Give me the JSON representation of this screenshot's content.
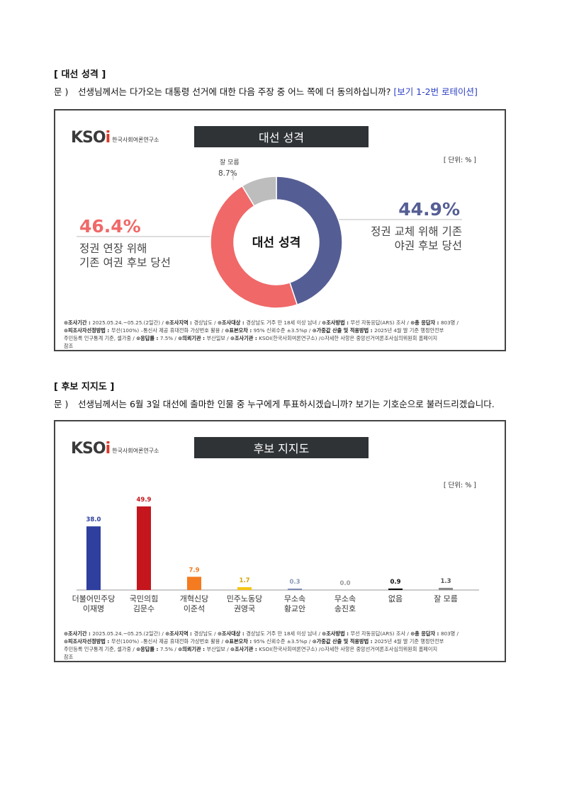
{
  "section1": {
    "title": "[ 대선 성격 ]",
    "q_label": "문 )",
    "q_text": "선생님께서는 다가오는 대통령 선거에 대한 다음 주장 중 어느 쪽에 더 동의하십니까? ",
    "q_note": "[보기 1-2번 로테이션]"
  },
  "section2": {
    "title": "[ 후보 지지도 ]",
    "q_label": "문 )",
    "q_text": "선생님께서는 6월 3일 대선에 출마한 인물 중 누구에게 투표하시겠습니까? 보기는 기호순으로 불러드리겠습니다."
  },
  "logo": {
    "mark_a": "KSO",
    "mark_b": "i",
    "sub": "한국사회여론연구소"
  },
  "panel1": {
    "title": "대선 성격",
    "unit": "[ 단위: % ]",
    "center_label": "대선 성격",
    "left_pct": "46.4%",
    "left_line1": "정권 연장 위해",
    "left_line2": "기존 여권 후보 당선",
    "right_pct": "44.9%",
    "right_line1": "정권 교체 위해 기존",
    "right_line2": "야권 후보 당선",
    "top_label1": "잘 모름",
    "top_label2": "8.7%"
  },
  "panel2": {
    "title": "후보 지지도",
    "unit": "[ 단위: % ]"
  },
  "footer": {
    "l1a": "⊙조사기간 : ",
    "l1b": "2025.05.24.~05.25.(2일간)  / ",
    "l1c": "⊙조사지역 : ",
    "l1d": "경상남도 / ",
    "l1e": "⊙조사대상 : ",
    "l1f": "경상남도 거주 만 18세 이상 남녀 / ",
    "l1g": "⊙조사방법 : ",
    "l1h": "무선 자동응답(ARS) 조사 / ",
    "l1i": "⊙총 응답자 : ",
    "l1j": "803명 /",
    "l2a": "⊙피조사자선정방법 : ",
    "l2b": "무선(100%) –통신사 제공 휴대전화 가상번호 활용 / ",
    "l2c": "⊙표본오차 : ",
    "l2d": "95% 신뢰수준 ±3.5%p / ",
    "l2e": "⊙가중값 산출 및 적용방법 : ",
    "l2f": "2025년 4월 말 기준 행정안전부",
    "l3a": "주민등록 인구통계 기준, 셀가중 / ",
    "l3b": "⊙응답률 : ",
    "l3c": "7.5% / ",
    "l3d": "⊙의뢰기관 : ",
    "l3e": "부산일보 / ",
    "l3f": "⊙조사기관 : ",
    "l3g": "KSOI(한국사회여론연구소) /",
    "l3h": "⊙자세한 사항은 중앙선거여론조사심의위원회 홈페이지",
    "l4": "참조"
  },
  "chart_data": [
    {
      "type": "pie",
      "title": "대선 성격",
      "categories": [
        "정권 교체 위해 기존 야권 후보 당선",
        "정권 연장 위해 기존 여권 후보 당선",
        "잘 모름"
      ],
      "values": [
        44.9,
        46.4,
        8.7
      ],
      "colors": [
        "#555e94",
        "#f06868",
        "#bdbdbd"
      ]
    },
    {
      "type": "bar",
      "title": "후보 지지도",
      "categories": [
        {
          "line1": "더불어민주당",
          "line2": "이재명"
        },
        {
          "line1": "국민의힘",
          "line2": "김문수"
        },
        {
          "line1": "개혁신당",
          "line2": "이준석"
        },
        {
          "line1": "민주노동당",
          "line2": "권영국"
        },
        {
          "line1": "무소속",
          "line2": "황교안"
        },
        {
          "line1": "무소속",
          "line2": "송진호"
        },
        {
          "line1": "없음",
          "line2": ""
        },
        {
          "line1": "잘 모름",
          "line2": ""
        }
      ],
      "values": [
        38.0,
        49.9,
        7.9,
        1.7,
        0.3,
        0.0,
        0.9,
        1.3
      ],
      "value_labels": [
        "38.0",
        "49.9",
        "7.9",
        "1.7",
        "0.3",
        "0.0",
        "0.9",
        "1.3"
      ],
      "colors": [
        "#2e3f9e",
        "#c4161c",
        "#f47b20",
        "#f5c518",
        "#7f8db5",
        "#9a9a9a",
        "#111111",
        "#8a8a8a"
      ],
      "label_colors": [
        "#2e3f9e",
        "#c4161c",
        "#f47b20",
        "#d4a400",
        "#8a9ab5",
        "#9a9a9a",
        "#111111",
        "#555555"
      ],
      "ylim": [
        0,
        55
      ]
    }
  ]
}
